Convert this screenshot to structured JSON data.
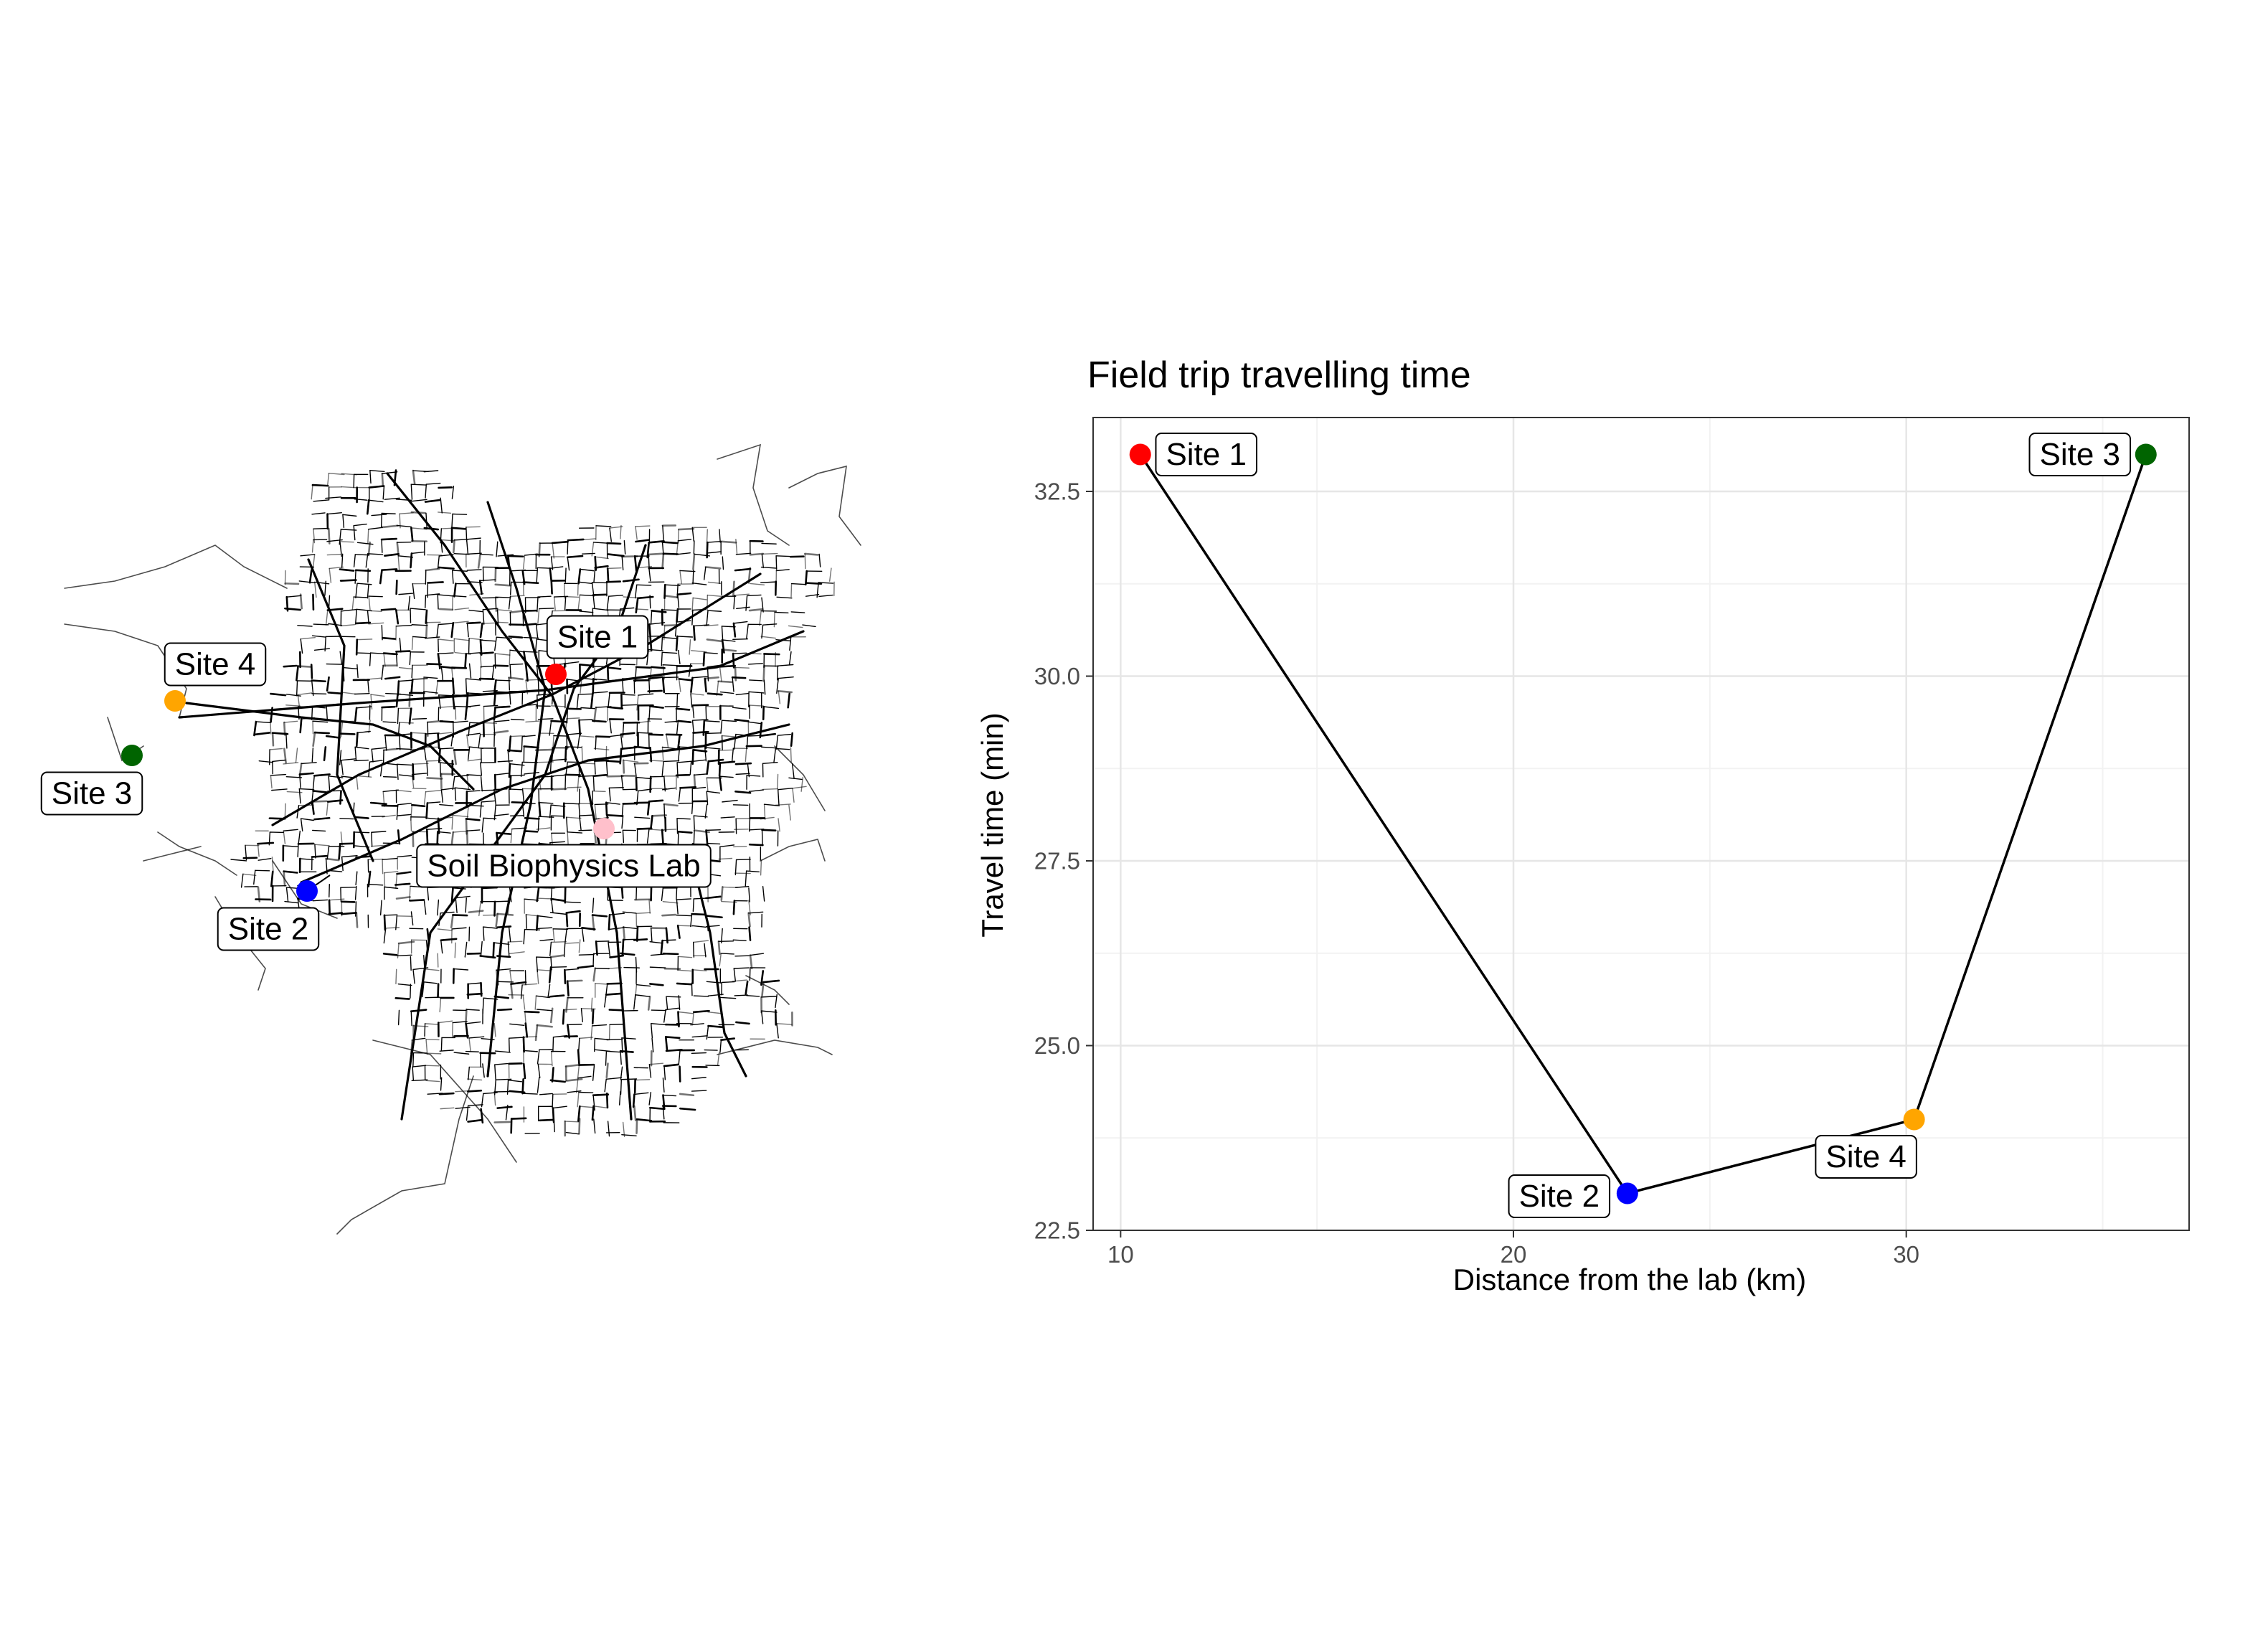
{
  "map": {
    "background": "#ffffff",
    "road_color": "#000000",
    "points": [
      {
        "label": "Site 1",
        "color": "#ff0000"
      },
      {
        "label": "Site 2",
        "color": "#0000ff"
      },
      {
        "label": "Site 3",
        "color": "#006400"
      },
      {
        "label": "Site 4",
        "color": "#ffa500"
      },
      {
        "label": "Soil Biophysics Lab",
        "color": "#ffc0cb"
      }
    ]
  },
  "chart_data": {
    "type": "scatter",
    "title": "Field trip travelling time",
    "xlabel": "Distance from the lab (km)",
    "ylabel": "Travel time (min)",
    "xlim": [
      9.3,
      37.2
    ],
    "ylim": [
      22.5,
      33.5
    ],
    "xticks": [
      10,
      20,
      30
    ],
    "yticks": [
      22.5,
      25.0,
      27.5,
      30.0,
      32.5
    ],
    "xtick_labels": [
      "10",
      "20",
      "30"
    ],
    "ytick_labels": [
      "22.5",
      "25.0",
      "27.5",
      "30.0",
      "32.5"
    ],
    "grid": true,
    "line_connects_points": true,
    "points": [
      {
        "label": "Site 1",
        "x": 10.5,
        "y": 33.0,
        "color": "#ff0000"
      },
      {
        "label": "Site 2",
        "x": 22.9,
        "y": 23.0,
        "color": "#0000ff"
      },
      {
        "label": "Site 4",
        "x": 30.2,
        "y": 24.0,
        "color": "#ffa500"
      },
      {
        "label": "Site 3",
        "x": 36.1,
        "y": 33.0,
        "color": "#006400"
      }
    ]
  }
}
